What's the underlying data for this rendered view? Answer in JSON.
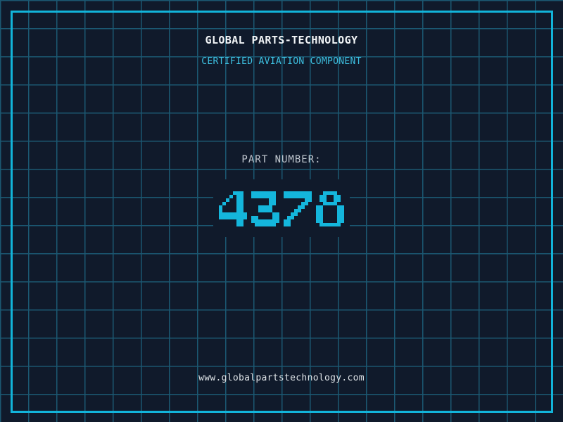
{
  "colors": {
    "background": "#101a2b",
    "grid_line": "#1b5872",
    "frame": "#12b4da",
    "title_text": "#f2f5f7",
    "subtitle_text": "#3ec1e2",
    "label_text": "#c2c9d1",
    "number_color": "#14b6dc",
    "url_text": "#dde2e6"
  },
  "header": {
    "title": "GLOBAL PARTS-TECHNOLOGY",
    "subtitle": "CERTIFIED AVIATION COMPONENT"
  },
  "part": {
    "label": "PART NUMBER:",
    "number": "4378"
  },
  "footer": {
    "url": "www.globalpartstechnology.com"
  }
}
